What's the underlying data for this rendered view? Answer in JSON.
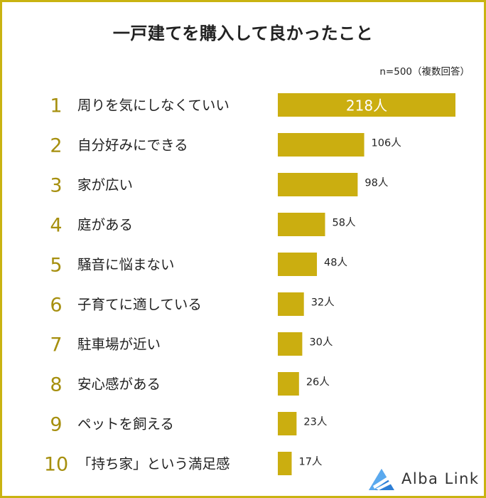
{
  "header": {
    "title": "一戸建てを購入して良かったこと",
    "sample_note": "n=500（複数回答）"
  },
  "logo": {
    "text": "Alba Link",
    "icon": "alba-link-triangle-logo"
  },
  "colors": {
    "bar": "#cbae10",
    "rank": "#a68f0e",
    "border": "#c9b311",
    "text": "#222222",
    "logo_blue": "#2e7fd6"
  },
  "chart_data": {
    "type": "bar",
    "orientation": "horizontal",
    "categories": [
      "周りを気にしなくていい",
      "自分好みにできる",
      "家が広い",
      "庭がある",
      "騒音に悩まない",
      "子育てに適している",
      "駐車場が近い",
      "安心感がある",
      "ペットを飼える",
      "「持ち家」という満足感"
    ],
    "ranks": [
      "1",
      "2",
      "3",
      "4",
      "5",
      "6",
      "7",
      "8",
      "9",
      "10"
    ],
    "values": [
      218,
      106,
      98,
      58,
      48,
      32,
      30,
      26,
      23,
      17
    ],
    "value_labels": [
      "218人",
      "106人",
      "98人",
      "58人",
      "48人",
      "32人",
      "30人",
      "26人",
      "23人",
      "17人"
    ],
    "title": "一戸建てを購入して良かったこと",
    "xlabel": "",
    "ylabel": "",
    "grid": false,
    "legend": "none"
  }
}
